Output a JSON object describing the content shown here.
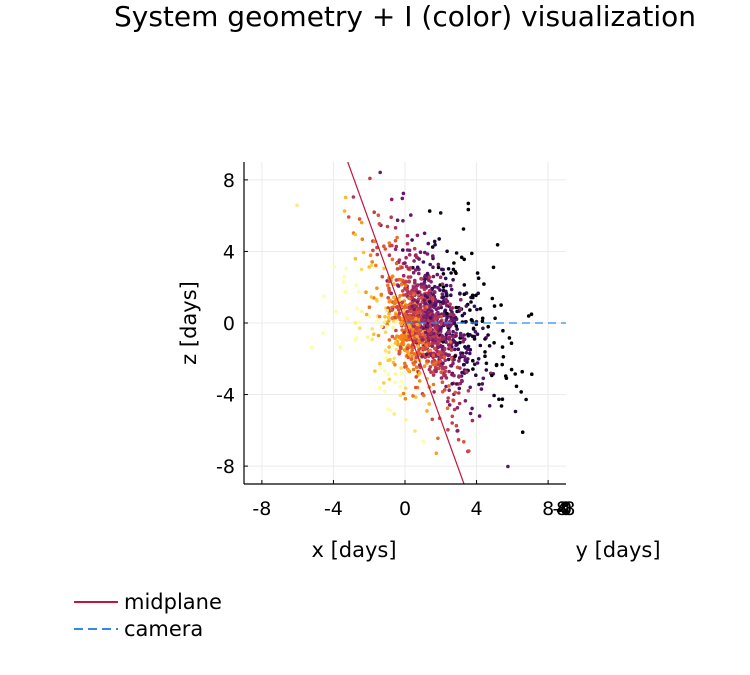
{
  "chart_data": {
    "type": "scatter",
    "title": "System geometry + I (color) visualization",
    "xlabel": "x [days]",
    "ylabel": "z [days]",
    "y2label": "y [days]",
    "xlim": [
      -9,
      9
    ],
    "ylim": [
      -9,
      9
    ],
    "xticks": [
      "-8",
      "-4",
      "0",
      "4",
      "8"
    ],
    "yticks": [
      "8",
      "4",
      "0",
      "-4",
      "-8"
    ],
    "ytick_values": [
      8,
      4,
      0,
      -4,
      -8
    ],
    "xtick_values": [
      -8,
      -4,
      0,
      4,
      8
    ],
    "y_axis_stub_ticks": [
      "8",
      "-8",
      "4",
      "0",
      "-4"
    ],
    "grid": true,
    "colormap": "inferno",
    "series": [
      {
        "name": "midplane",
        "kind": "line",
        "color": "#c1173f",
        "points": [
          [
            -3.2,
            9.0
          ],
          [
            3.3,
            -9.0
          ]
        ]
      },
      {
        "name": "camera",
        "kind": "dashed-line",
        "color": "#2e8be6",
        "points": [
          [
            0.0,
            0.0
          ],
          [
            9.0,
            0.0
          ]
        ]
      },
      {
        "name": "particles",
        "kind": "scatter",
        "count": 1400,
        "color_variable": "I"
      }
    ],
    "legend": {
      "position": "bottom-left",
      "entries": [
        "midplane",
        "camera"
      ]
    }
  }
}
